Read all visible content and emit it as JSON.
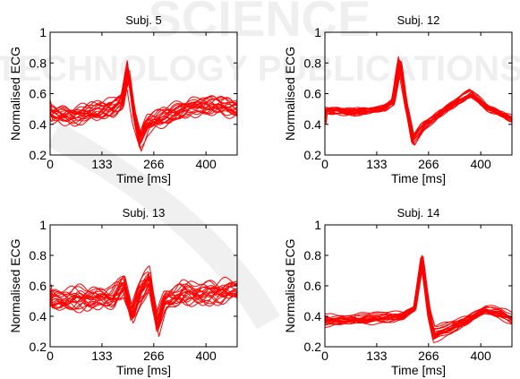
{
  "watermark": {
    "line1": "SCIENCE",
    "line2": "TECHNOLOGY PUBLICATIONS"
  },
  "chart_data": [
    {
      "type": "line",
      "title": "Subj. 5",
      "xlabel": "Time [ms]",
      "ylabel": "Normalised ECG",
      "xlim": [
        0,
        480
      ],
      "ylim": [
        0.2,
        1
      ],
      "xticks": [
        0,
        133,
        266,
        400
      ],
      "yticks": [
        0.2,
        0.4,
        0.6,
        0.8,
        1
      ],
      "color": "#ff0000",
      "n_traces": 20,
      "seed": 5,
      "noise": 0.04,
      "profile": [
        [
          0,
          0.47
        ],
        [
          60,
          0.46
        ],
        [
          120,
          0.48
        ],
        [
          160,
          0.5
        ],
        [
          185,
          0.56
        ],
        [
          200,
          0.75
        ],
        [
          215,
          0.48
        ],
        [
          230,
          0.3
        ],
        [
          250,
          0.4
        ],
        [
          300,
          0.45
        ],
        [
          360,
          0.52
        ],
        [
          420,
          0.52
        ],
        [
          480,
          0.5
        ]
      ]
    },
    {
      "type": "line",
      "title": "Subj. 12",
      "xlabel": "Time [ms]",
      "ylabel": "Normalised ECG",
      "xlim": [
        0,
        480
      ],
      "ylim": [
        0.2,
        1
      ],
      "xticks": [
        0,
        133,
        266,
        400
      ],
      "yticks": [
        0.2,
        0.4,
        0.6,
        0.8,
        1
      ],
      "color": "#ff0000",
      "n_traces": 20,
      "seed": 12,
      "noise": 0.015,
      "profile": [
        [
          0,
          0.49
        ],
        [
          80,
          0.48
        ],
        [
          150,
          0.5
        ],
        [
          175,
          0.55
        ],
        [
          192,
          0.8
        ],
        [
          210,
          0.5
        ],
        [
          225,
          0.3
        ],
        [
          250,
          0.38
        ],
        [
          300,
          0.48
        ],
        [
          340,
          0.55
        ],
        [
          375,
          0.6
        ],
        [
          420,
          0.5
        ],
        [
          480,
          0.43
        ]
      ]
    },
    {
      "type": "line",
      "title": "Subj. 13",
      "xlabel": "Time [ms]",
      "ylabel": "Normalised ECG",
      "xlim": [
        0,
        480
      ],
      "ylim": [
        0.2,
        1
      ],
      "xticks": [
        0,
        133,
        266,
        400
      ],
      "yticks": [
        0.2,
        0.4,
        0.6,
        0.8,
        1
      ],
      "color": "#ff0000",
      "n_traces": 20,
      "seed": 13,
      "noise": 0.05,
      "profile": [
        [
          0,
          0.5
        ],
        [
          80,
          0.52
        ],
        [
          160,
          0.52
        ],
        [
          190,
          0.6
        ],
        [
          210,
          0.42
        ],
        [
          230,
          0.55
        ],
        [
          255,
          0.65
        ],
        [
          275,
          0.35
        ],
        [
          295,
          0.5
        ],
        [
          340,
          0.55
        ],
        [
          400,
          0.55
        ],
        [
          480,
          0.57
        ]
      ]
    },
    {
      "type": "line",
      "title": "Subj. 14",
      "xlabel": "Time [ms]",
      "ylabel": "Normalised ECG",
      "xlim": [
        0,
        480
      ],
      "ylim": [
        0.2,
        1
      ],
      "xticks": [
        0,
        133,
        266,
        400
      ],
      "yticks": [
        0.2,
        0.4,
        0.6,
        0.8,
        1
      ],
      "color": "#ff0000",
      "n_traces": 20,
      "seed": 14,
      "noise": 0.015,
      "profile": [
        [
          0,
          0.37
        ],
        [
          100,
          0.38
        ],
        [
          200,
          0.4
        ],
        [
          230,
          0.45
        ],
        [
          250,
          0.77
        ],
        [
          268,
          0.4
        ],
        [
          280,
          0.28
        ],
        [
          320,
          0.32
        ],
        [
          370,
          0.38
        ],
        [
          410,
          0.44
        ],
        [
          450,
          0.42
        ],
        [
          480,
          0.38
        ]
      ]
    }
  ]
}
